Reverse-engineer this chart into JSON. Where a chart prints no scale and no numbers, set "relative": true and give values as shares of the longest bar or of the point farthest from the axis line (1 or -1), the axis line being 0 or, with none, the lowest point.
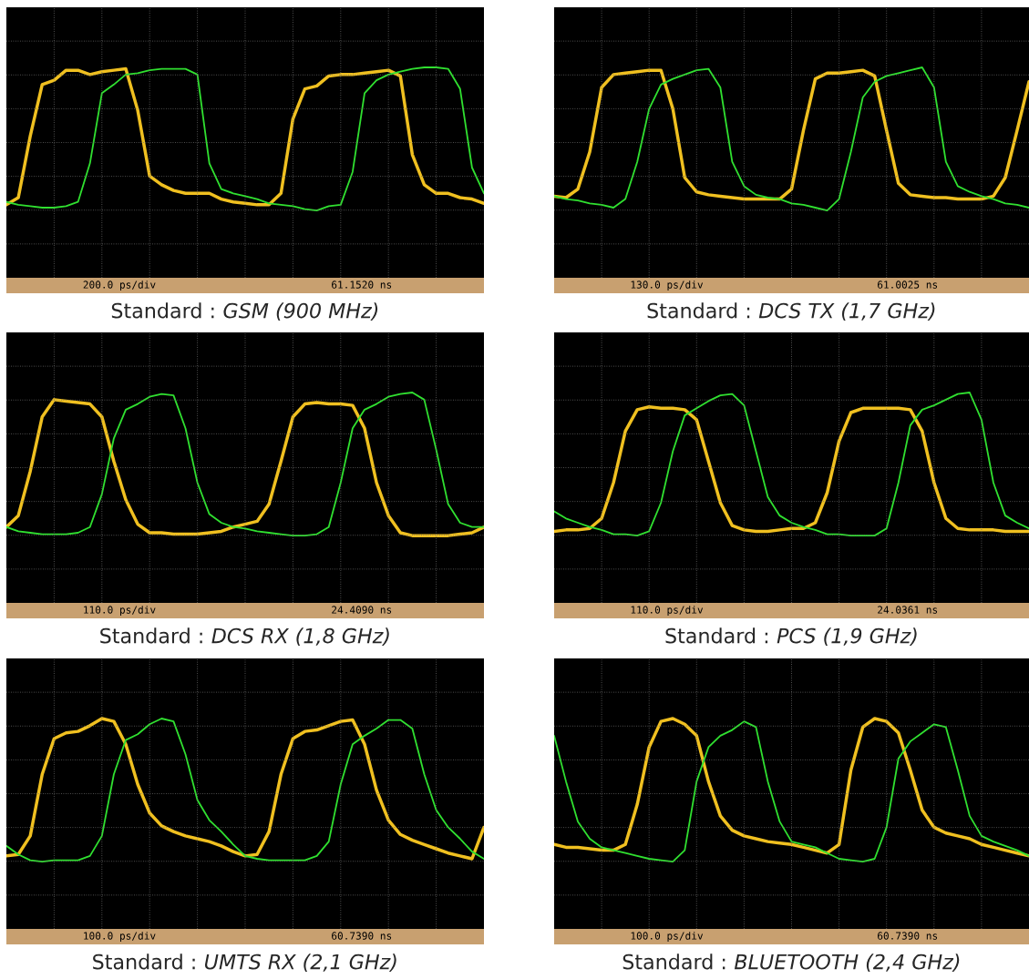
{
  "chart_data": [
    {
      "type": "line",
      "title": "Standard :",
      "subtitle": "GSM (900 MHz)",
      "annotations": [
        "200.0 ps/div",
        "61.1520 ns"
      ],
      "relative": true,
      "grid": true,
      "legend": false,
      "line_style": "solid",
      "marker": "none",
      "categories": [
        null,
        null,
        null,
        null,
        null,
        null,
        null,
        null,
        null,
        null,
        null,
        null,
        null,
        null,
        null,
        null,
        null,
        null,
        null,
        null,
        null,
        null,
        null,
        null,
        null,
        null,
        null,
        null,
        null,
        null,
        null,
        null,
        null,
        null,
        null,
        null,
        null,
        null,
        null,
        null,
        null
      ],
      "series": [
        {
          "color": "#f0c020",
          "values": [
            0.04,
            0.09,
            0.52,
            0.88,
            0.91,
            0.98,
            0.98,
            0.95,
            0.97,
            0.98,
            0.99,
            0.7,
            0.24,
            0.18,
            0.14,
            0.12,
            0.12,
            0.12,
            0.08,
            0.06,
            0.05,
            0.04,
            0.04,
            0.12,
            0.64,
            0.85,
            0.87,
            0.94,
            0.95,
            0.95,
            0.96,
            0.97,
            0.98,
            0.94,
            0.39,
            0.18,
            0.12,
            0.12,
            0.09,
            0.08,
            0.05
          ]
        },
        {
          "color": "#30e030",
          "values": [
            0.06,
            0.04,
            0.03,
            0.02,
            0.02,
            0.03,
            0.06,
            0.33,
            0.82,
            0.88,
            0.95,
            0.96,
            0.98,
            0.99,
            0.99,
            0.99,
            0.95,
            0.33,
            0.15,
            0.12,
            0.1,
            0.08,
            0.05,
            0.04,
            0.03,
            0.01,
            0,
            0.03,
            0.04,
            0.27,
            0.82,
            0.91,
            0.95,
            0.97,
            0.99,
            1,
            1,
            0.99,
            0.85,
            0.3,
            0.12
          ]
        }
      ]
    },
    {
      "type": "line",
      "title": "Standard :",
      "subtitle": "DCS TX (1,7 GHz)",
      "annotations": [
        "130.0 ps/div",
        "61.0025 ns"
      ],
      "relative": true,
      "grid": true,
      "legend": false,
      "line_style": "solid",
      "marker": "none",
      "categories": [
        null,
        null,
        null,
        null,
        null,
        null,
        null,
        null,
        null,
        null,
        null,
        null,
        null,
        null,
        null,
        null,
        null,
        null,
        null,
        null,
        null,
        null,
        null,
        null,
        null,
        null,
        null,
        null,
        null,
        null,
        null,
        null,
        null,
        null,
        null,
        null,
        null,
        null,
        null,
        null,
        null
      ],
      "series": [
        {
          "color": "#f0c020",
          "values": [
            0.1,
            0.09,
            0.15,
            0.41,
            0.86,
            0.95,
            0.96,
            0.97,
            0.98,
            0.98,
            0.71,
            0.23,
            0.13,
            0.11,
            0.1,
            0.09,
            0.08,
            0.08,
            0.08,
            0.08,
            0.15,
            0.56,
            0.92,
            0.96,
            0.96,
            0.97,
            0.98,
            0.94,
            0.56,
            0.19,
            0.11,
            0.1,
            0.09,
            0.09,
            0.08,
            0.08,
            0.08,
            0.1,
            0.23,
            0.56,
            0.9
          ]
        },
        {
          "color": "#30e030",
          "values": [
            0.1,
            0.08,
            0.07,
            0.05,
            0.04,
            0.02,
            0.08,
            0.34,
            0.71,
            0.88,
            0.92,
            0.95,
            0.98,
            0.99,
            0.86,
            0.34,
            0.17,
            0.11,
            0.09,
            0.08,
            0.05,
            0.04,
            0.02,
            0,
            0.08,
            0.41,
            0.79,
            0.9,
            0.94,
            0.96,
            0.98,
            1,
            0.86,
            0.34,
            0.17,
            0.13,
            0.1,
            0.08,
            0.05,
            0.04,
            0.02
          ]
        }
      ]
    },
    {
      "type": "line",
      "title": "Standard :",
      "subtitle": "DCS RX (1,8 GHz)",
      "annotations": [
        "110.0 ps/div",
        "24.4090 ns"
      ],
      "relative": true,
      "grid": true,
      "legend": false,
      "line_style": "solid",
      "marker": "none",
      "categories": [
        null,
        null,
        null,
        null,
        null,
        null,
        null,
        null,
        null,
        null,
        null,
        null,
        null,
        null,
        null,
        null,
        null,
        null,
        null,
        null,
        null,
        null,
        null,
        null,
        null,
        null,
        null,
        null,
        null,
        null,
        null,
        null,
        null,
        null,
        null,
        null,
        null,
        null,
        null,
        null,
        null
      ],
      "series": [
        {
          "color": "#f0c020",
          "values": [
            0.06,
            0.14,
            0.45,
            0.83,
            0.95,
            0.94,
            0.93,
            0.92,
            0.83,
            0.52,
            0.25,
            0.08,
            0.02,
            0.02,
            0.01,
            0.01,
            0.01,
            0.02,
            0.03,
            0.06,
            0.08,
            0.1,
            0.22,
            0.52,
            0.83,
            0.92,
            0.93,
            0.92,
            0.92,
            0.91,
            0.75,
            0.37,
            0.14,
            0.02,
            0,
            0,
            0,
            0,
            0.01,
            0.02,
            0.06
          ]
        },
        {
          "color": "#30e030",
          "values": [
            0.06,
            0.03,
            0.02,
            0.01,
            0.01,
            0.01,
            0.02,
            0.06,
            0.29,
            0.68,
            0.88,
            0.92,
            0.97,
            0.99,
            0.98,
            0.75,
            0.37,
            0.15,
            0.09,
            0.06,
            0.05,
            0.03,
            0.02,
            0.01,
            0,
            0,
            0.01,
            0.06,
            0.37,
            0.75,
            0.88,
            0.92,
            0.97,
            0.99,
            1,
            0.95,
            0.6,
            0.22,
            0.09,
            0.06,
            0.06
          ]
        }
      ]
    },
    {
      "type": "line",
      "title": "Standard :",
      "subtitle": "PCS (1,9 GHz)",
      "annotations": [
        "110.0 ps/div",
        "24.0361 ns"
      ],
      "relative": true,
      "grid": true,
      "legend": false,
      "line_style": "solid",
      "marker": "none",
      "categories": [
        null,
        null,
        null,
        null,
        null,
        null,
        null,
        null,
        null,
        null,
        null,
        null,
        null,
        null,
        null,
        null,
        null,
        null,
        null,
        null,
        null,
        null,
        null,
        null,
        null,
        null,
        null,
        null,
        null,
        null,
        null,
        null,
        null,
        null,
        null,
        null,
        null,
        null,
        null,
        null,
        null
      ],
      "series": [
        {
          "color": "#f0c020",
          "values": [
            0.03,
            0.04,
            0.04,
            0.05,
            0.12,
            0.37,
            0.73,
            0.88,
            0.9,
            0.89,
            0.89,
            0.88,
            0.81,
            0.52,
            0.23,
            0.07,
            0.04,
            0.03,
            0.03,
            0.04,
            0.05,
            0.05,
            0.09,
            0.3,
            0.66,
            0.86,
            0.89,
            0.89,
            0.89,
            0.89,
            0.88,
            0.73,
            0.37,
            0.12,
            0.05,
            0.04,
            0.04,
            0.04,
            0.03,
            0.03,
            0.03
          ]
        },
        {
          "color": "#30e030",
          "values": [
            0.17,
            0.12,
            0.09,
            0.06,
            0.04,
            0.01,
            0.01,
            0,
            0.03,
            0.23,
            0.59,
            0.84,
            0.89,
            0.94,
            0.98,
            0.99,
            0.91,
            0.59,
            0.27,
            0.14,
            0.09,
            0.06,
            0.04,
            0.01,
            0.01,
            0,
            0,
            0,
            0.05,
            0.37,
            0.77,
            0.88,
            0.91,
            0.95,
            0.99,
            1,
            0.81,
            0.37,
            0.14,
            0.09,
            0.05
          ]
        }
      ]
    },
    {
      "type": "line",
      "title": "Standard :",
      "subtitle": "UMTS RX (2,1 GHz)",
      "annotations": [
        "100.0 ps/div",
        "60.7390 ns"
      ],
      "relative": true,
      "grid": true,
      "legend": false,
      "line_style": "solid",
      "marker": "none",
      "categories": [
        null,
        null,
        null,
        null,
        null,
        null,
        null,
        null,
        null,
        null,
        null,
        null,
        null,
        null,
        null,
        null,
        null,
        null,
        null,
        null,
        null,
        null,
        null,
        null,
        null,
        null,
        null,
        null,
        null,
        null,
        null,
        null,
        null,
        null,
        null,
        null,
        null,
        null,
        null,
        null,
        null
      ],
      "series": [
        {
          "color": "#f0c020",
          "values": [
            0.04,
            0.05,
            0.18,
            0.61,
            0.86,
            0.9,
            0.91,
            0.95,
            1,
            0.98,
            0.82,
            0.54,
            0.34,
            0.25,
            0.21,
            0.18,
            0.16,
            0.14,
            0.11,
            0.07,
            0.04,
            0.05,
            0.21,
            0.61,
            0.86,
            0.91,
            0.92,
            0.95,
            0.98,
            0.99,
            0.82,
            0.5,
            0.29,
            0.19,
            0.15,
            0.12,
            0.09,
            0.06,
            0.04,
            0.02,
            0.24
          ]
        },
        {
          "color": "#30e030",
          "values": [
            0.11,
            0.05,
            0.01,
            0,
            0.01,
            0.01,
            0.01,
            0.04,
            0.18,
            0.61,
            0.85,
            0.89,
            0.96,
            1,
            0.98,
            0.75,
            0.43,
            0.29,
            0.21,
            0.12,
            0.04,
            0.02,
            0.01,
            0.01,
            0.01,
            0.01,
            0.04,
            0.14,
            0.54,
            0.82,
            0.88,
            0.93,
            0.99,
            0.99,
            0.93,
            0.61,
            0.36,
            0.24,
            0.16,
            0.07,
            0.02
          ]
        }
      ]
    },
    {
      "type": "line",
      "title": "Standard :",
      "subtitle": "BLUETOOTH (2,4 GHz)",
      "annotations": [
        "100.0 ps/div",
        "60.7390 ns"
      ],
      "relative": true,
      "grid": true,
      "legend": false,
      "line_style": "solid",
      "marker": "none",
      "categories": [
        null,
        null,
        null,
        null,
        null,
        null,
        null,
        null,
        null,
        null,
        null,
        null,
        null,
        null,
        null,
        null,
        null,
        null,
        null,
        null,
        null,
        null,
        null,
        null,
        null,
        null,
        null,
        null,
        null,
        null,
        null,
        null,
        null,
        null,
        null,
        null,
        null,
        null,
        null,
        null,
        null
      ],
      "series": [
        {
          "color": "#f0c020",
          "values": [
            0.12,
            0.1,
            0.1,
            0.09,
            0.08,
            0.08,
            0.12,
            0.4,
            0.8,
            0.98,
            1,
            0.96,
            0.88,
            0.56,
            0.32,
            0.22,
            0.18,
            0.16,
            0.14,
            0.13,
            0.12,
            0.1,
            0.08,
            0.06,
            0.12,
            0.64,
            0.94,
            1,
            0.98,
            0.9,
            0.64,
            0.36,
            0.24,
            0.2,
            0.18,
            0.16,
            0.12,
            0.1,
            0.08,
            0.06,
            0.04
          ]
        },
        {
          "color": "#30e030",
          "values": [
            0.88,
            0.56,
            0.28,
            0.16,
            0.1,
            0.08,
            0.06,
            0.04,
            0.02,
            0.01,
            0,
            0.08,
            0.56,
            0.8,
            0.88,
            0.92,
            0.98,
            0.94,
            0.56,
            0.28,
            0.14,
            0.12,
            0.1,
            0.06,
            0.02,
            0.01,
            0,
            0.02,
            0.24,
            0.72,
            0.84,
            0.9,
            0.96,
            0.94,
            0.64,
            0.32,
            0.18,
            0.14,
            0.11,
            0.08,
            0.04
          ]
        }
      ]
    }
  ]
}
